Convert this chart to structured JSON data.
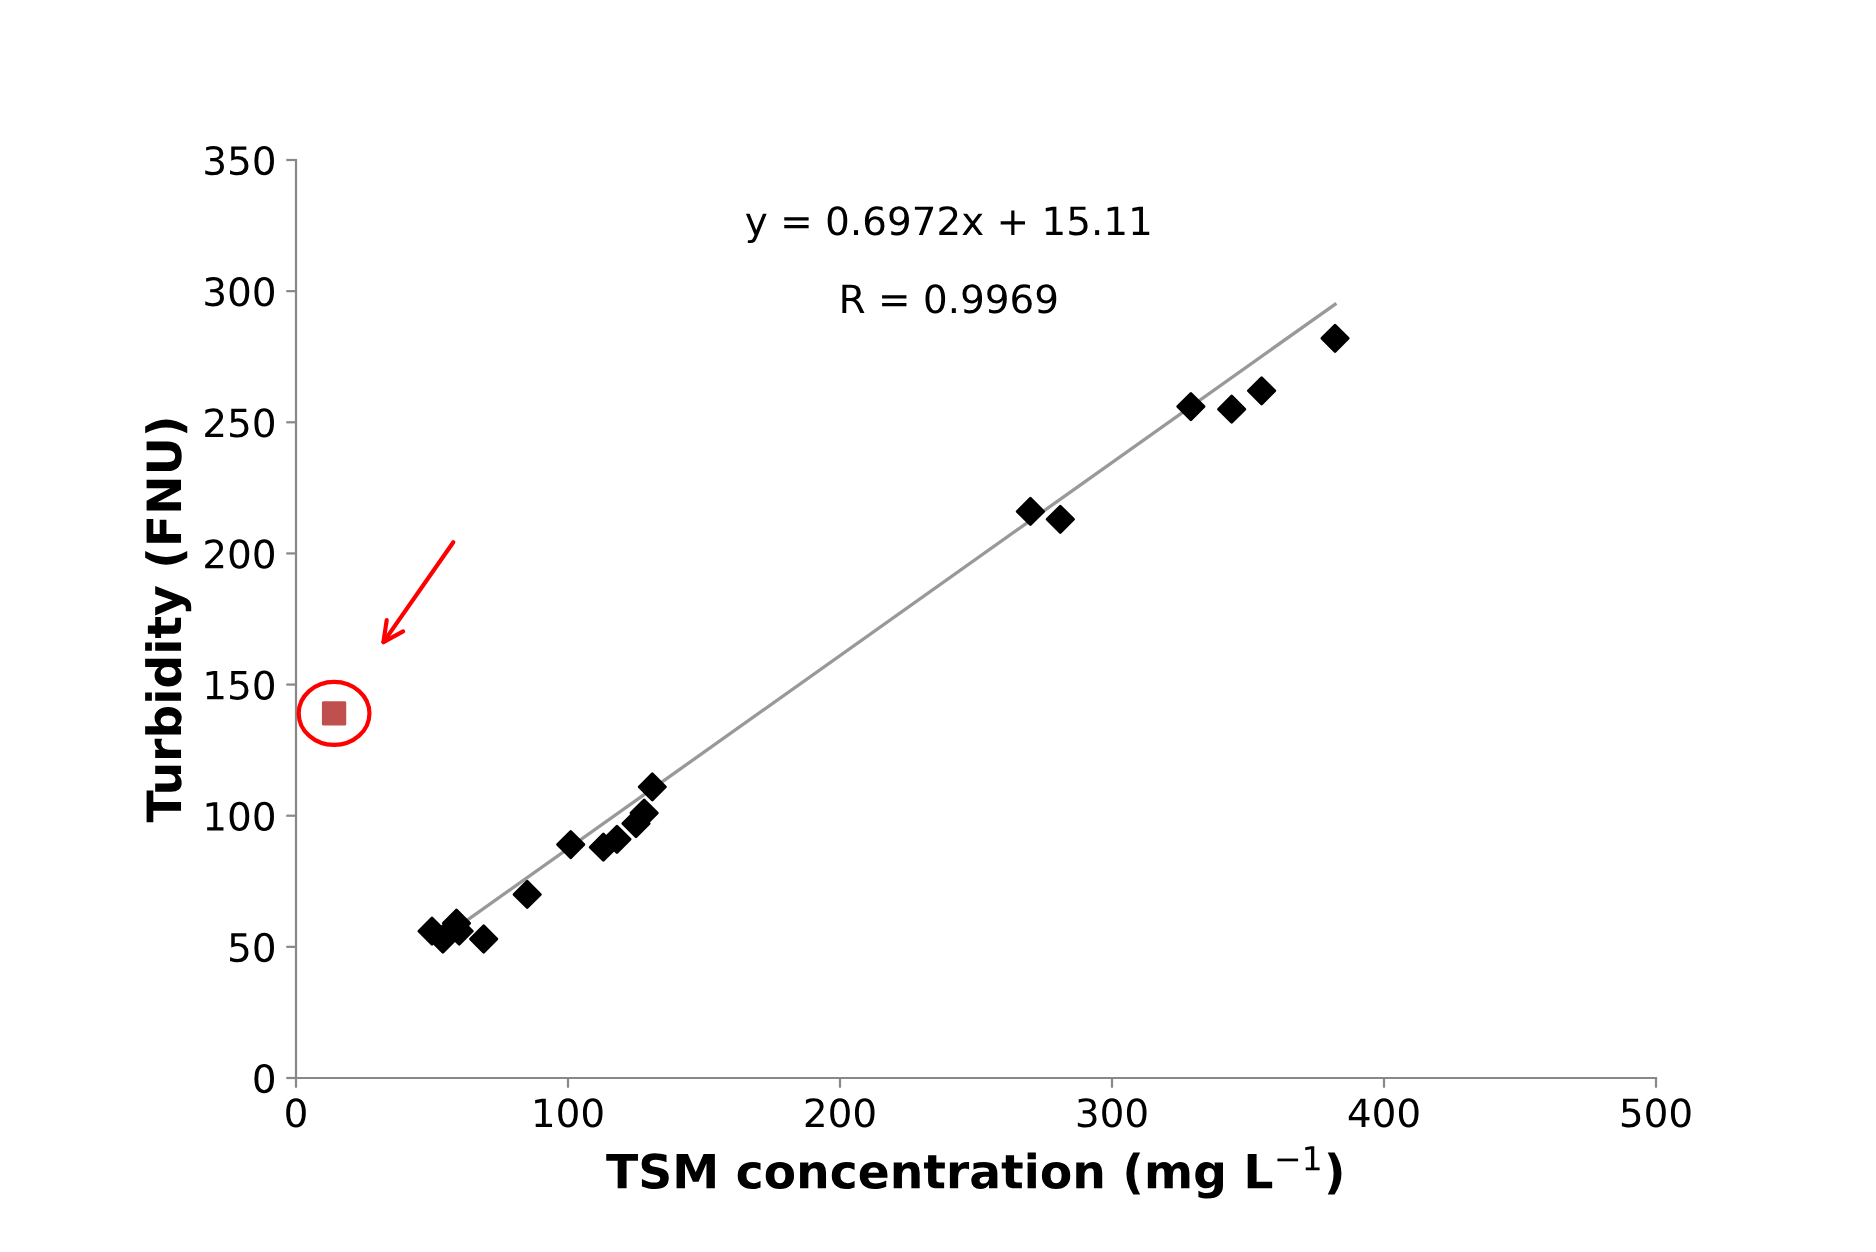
{
  "chart_data": {
    "type": "scatter",
    "xlabel": "TSM concentration (mg L$^{−1}$)",
    "ylabel": "Turbidity (FNU)",
    "annotations": [
      "y = 0.6972x + 15.11",
      "R = 0.9969"
    ],
    "series": [
      {
        "color": "#000000",
        "marker": "diamond",
        "x": [
          50,
          54,
          59,
          60,
          69,
          85,
          101,
          113,
          118,
          125,
          128,
          131,
          270,
          281,
          329,
          344,
          355,
          382
        ],
        "values": [
          56,
          53,
          59,
          56,
          53,
          70,
          89,
          88,
          91,
          97,
          101,
          111,
          216,
          213,
          256,
          255,
          262,
          282
        ]
      },
      {
        "color": "#c0504d",
        "marker": "square",
        "x": [
          14
        ],
        "values": [
          139
        ]
      },
      {
        "type": "line",
        "color": "#999999",
        "marker": "none",
        "x": [
          60,
          382
        ],
        "values": [
          58,
          295
        ]
      }
    ],
    "xlim": [
      0,
      500
    ],
    "xticks": [
      0,
      100,
      200,
      300,
      400,
      500
    ],
    "ylim": [
      0,
      350
    ],
    "yticks": [
      0,
      50,
      100,
      150,
      200,
      250,
      300,
      350
    ],
    "grid": false,
    "legend": false
  }
}
